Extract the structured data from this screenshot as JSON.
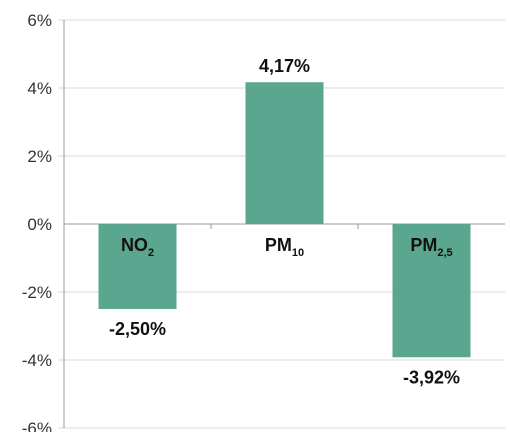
{
  "chart_data": {
    "type": "bar",
    "categories": [
      {
        "main": "NO",
        "sub": "2"
      },
      {
        "main": "PM",
        "sub": "10"
      },
      {
        "main": "PM",
        "sub": "2,5"
      }
    ],
    "values": [
      -2.5,
      4.17,
      -3.92
    ],
    "data_labels": [
      "-2,50%",
      "4,17%",
      "-3,92%"
    ],
    "y_ticks": [
      {
        "value": 6,
        "label": "6%"
      },
      {
        "value": 4,
        "label": "4%"
      },
      {
        "value": 2,
        "label": "2%"
      },
      {
        "value": 0,
        "label": "0%"
      },
      {
        "value": -2,
        "label": "-2%"
      },
      {
        "value": -4,
        "label": "-4%"
      },
      {
        "value": -6,
        "label": "-6%"
      }
    ],
    "ylim": [
      -6,
      6
    ],
    "grid": true,
    "bar_color": "#5ba68f",
    "grid_color": "#d9d9d9",
    "axis_color": "#999999",
    "title": "",
    "xlabel": "",
    "ylabel": ""
  }
}
